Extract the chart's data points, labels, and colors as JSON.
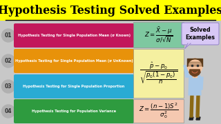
{
  "title": "Hypothesis Testing Solved Examples",
  "title_bg": "#FFFF00",
  "title_fontsize": 11.5,
  "bg_color": "#C8C8C8",
  "rows": [
    {
      "num": "01",
      "label": "Hypothesis Testing for Single Population Mean (σ Known)",
      "bar_color": "#C2185B"
    },
    {
      "num": "02",
      "label": "Hypothesis Testing for Single Population Mean (σ UnKnown)",
      "bar_color": "#E8920A"
    },
    {
      "num": "03",
      "label": "Hypothesis Testing for Single Population Proportion",
      "bar_color": "#29ABD4"
    },
    {
      "num": "04",
      "label": "Hypothesis Testing for Population Variance",
      "bar_color": "#2E9B3F"
    }
  ],
  "formula1_bg": "#7EC8A0",
  "formula23_bg": "#F5F0A0",
  "formula4_bg": "#F5C8B0",
  "bubble_bg": "#D8C8F5",
  "bubble_border": "#9988CC",
  "solved_text": "Solved\nExamples",
  "person_skin": "#F5C5A0",
  "person_shirt": "#A8C8E8",
  "person_pants": "#D4A060",
  "person_hair": "#5A3A1A",
  "person_beard": "#6A4020"
}
